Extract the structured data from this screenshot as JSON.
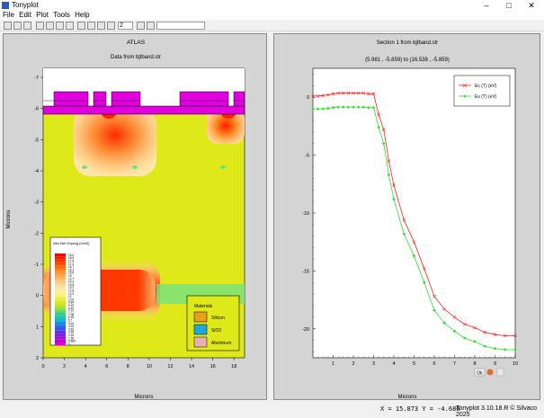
{
  "window": {
    "title": "Tonyplot",
    "controls": [
      "–",
      "□",
      "✕"
    ]
  },
  "menu": [
    "File",
    "Edit",
    "Plot",
    "Tools",
    "Help"
  ],
  "toolbar": {
    "icons": [
      "open-icon",
      "print-icon",
      "save-icon",
      "import-icon",
      "copy-icon",
      "layout-icon",
      "refresh-icon",
      "pan-icon",
      "zoom-in-icon",
      "zoom-out-icon",
      "zoom-fit-icon"
    ],
    "zoom_value": "2",
    "extra_icons": [
      "undo-icon",
      "redo-icon"
    ]
  },
  "left_plot": {
    "header": "ATLAS",
    "subtitle": "Data from bjtband.str",
    "xlabel": "Microns",
    "ylabel": "Microns",
    "x_ticks": [
      "0",
      "2",
      "4",
      "6",
      "8",
      "10",
      "12",
      "14",
      "16",
      "18"
    ],
    "y_ticks": [
      "-7",
      "-6",
      "-5",
      "-4",
      "-3",
      "-2",
      "-1",
      "0",
      "1",
      "2"
    ],
    "doping_legend": {
      "title": "Abs Net Doping (/cm3)",
      "values": [
        "19.4",
        "18.6",
        "17.8",
        "17.4",
        "16.7",
        "16.3",
        "15.6",
        "15",
        "14.7",
        "14.3",
        "13.6",
        "13.2",
        "12.8",
        "12.3",
        "12",
        "10.6",
        "9.84",
        "9.15",
        "8.46",
        "7.77",
        "7.08",
        "6.39",
        "5.7",
        "5.01",
        "4.32",
        "3.63",
        "2.94",
        "2.25",
        "1.56",
        "0.869",
        "0"
      ],
      "colors": [
        "#ff0000",
        "#ff1a00",
        "#ff3300",
        "#ff4d00",
        "#ff6600",
        "#ff7d1a",
        "#ff9433",
        "#ffa64d",
        "#ffb866",
        "#ffc880",
        "#ffd699",
        "#ffe2a6",
        "#ffeb99",
        "#fff280",
        "#f5f066",
        "#e8ee44",
        "#d4ea22",
        "#bfe520",
        "#8de040",
        "#5cd860",
        "#33d088",
        "#1ac4b0",
        "#10b0d0",
        "#1090e0",
        "#2070ee",
        "#4050f0",
        "#6030e8",
        "#8020e0",
        "#a010d8",
        "#c000d0",
        "#e000e0"
      ]
    },
    "materials_legend": {
      "title": "Materials",
      "items": [
        {
          "name": "Silicon",
          "color": "#e8a018"
        },
        {
          "name": "SiO2",
          "color": "#20a8d8"
        },
        {
          "name": "Aluminum",
          "color": "#e8b0b0"
        }
      ]
    }
  },
  "right_plot": {
    "title": "Section 1 from bjtband.str",
    "subtitle": "(5.981 , -5.859) to (16.538 , -5.859)",
    "xlabel": "Microns",
    "legend_items": [
      {
        "name": "Ec (T) (eV)",
        "color": "#ff2020"
      },
      {
        "name": "Ev (T) (eV)",
        "color": "#30e030"
      }
    ],
    "x_ticks": [
      "1",
      "2",
      "3",
      "4",
      "5",
      "6",
      "7",
      "8",
      "9",
      "10"
    ],
    "y_ticks": [
      "0",
      "-5",
      "-10",
      "-15",
      "-20"
    ],
    "ok_button": "Ok",
    "chart_data": {
      "type": "line",
      "title": "Section 1 from bjtband.str",
      "subtitle": "(5.981 , -5.859) to (16.538 , -5.859)",
      "xlabel": "Microns",
      "ylabel": "",
      "xlim": [
        0,
        10
      ],
      "ylim": [
        -22.5,
        2.5
      ],
      "legend": "top-right",
      "grid": false,
      "series": [
        {
          "name": "Ec (T) (eV)",
          "color": "#ff2020",
          "x": [
            0,
            0.25,
            0.5,
            0.75,
            1,
            1.25,
            1.5,
            1.75,
            2,
            2.25,
            2.5,
            2.75,
            3,
            3.25,
            3.5,
            3.75,
            4,
            4.5,
            5,
            5.5,
            6,
            6.5,
            7,
            7.5,
            8,
            8.5,
            9,
            9.5,
            10
          ],
          "values": [
            0.1,
            0.1,
            0.15,
            0.2,
            0.3,
            0.35,
            0.35,
            0.35,
            0.35,
            0.35,
            0.35,
            0.3,
            0.3,
            -1.5,
            -2.8,
            -5.5,
            -7.6,
            -10.6,
            -12.5,
            -14.8,
            -17.2,
            -18.3,
            -19.0,
            -19.6,
            -19.9,
            -20.3,
            -20.5,
            -20.6,
            -20.6
          ]
        },
        {
          "name": "Ev (T) (eV)",
          "color": "#30e030",
          "x": [
            0,
            0.25,
            0.5,
            0.75,
            1,
            1.25,
            1.5,
            1.75,
            2,
            2.25,
            2.5,
            2.75,
            3,
            3.25,
            3.5,
            3.75,
            4,
            4.5,
            5,
            5.5,
            6,
            6.5,
            7,
            7.5,
            8,
            8.5,
            9,
            9.5,
            10
          ],
          "values": [
            -1.0,
            -1.0,
            -1.0,
            -0.95,
            -0.9,
            -0.85,
            -0.85,
            -0.85,
            -0.85,
            -0.85,
            -0.85,
            -0.9,
            -0.9,
            -2.6,
            -4.0,
            -6.7,
            -8.8,
            -11.8,
            -13.7,
            -16.0,
            -18.4,
            -19.5,
            -20.2,
            -20.8,
            -21.1,
            -21.5,
            -21.7,
            -21.8,
            -21.8
          ]
        }
      ]
    }
  },
  "status": {
    "cursor_readout": "X = 15.873 Y = -4.686",
    "credit": "Tonyplot 3.10.18.R © Silvaco 2025"
  }
}
